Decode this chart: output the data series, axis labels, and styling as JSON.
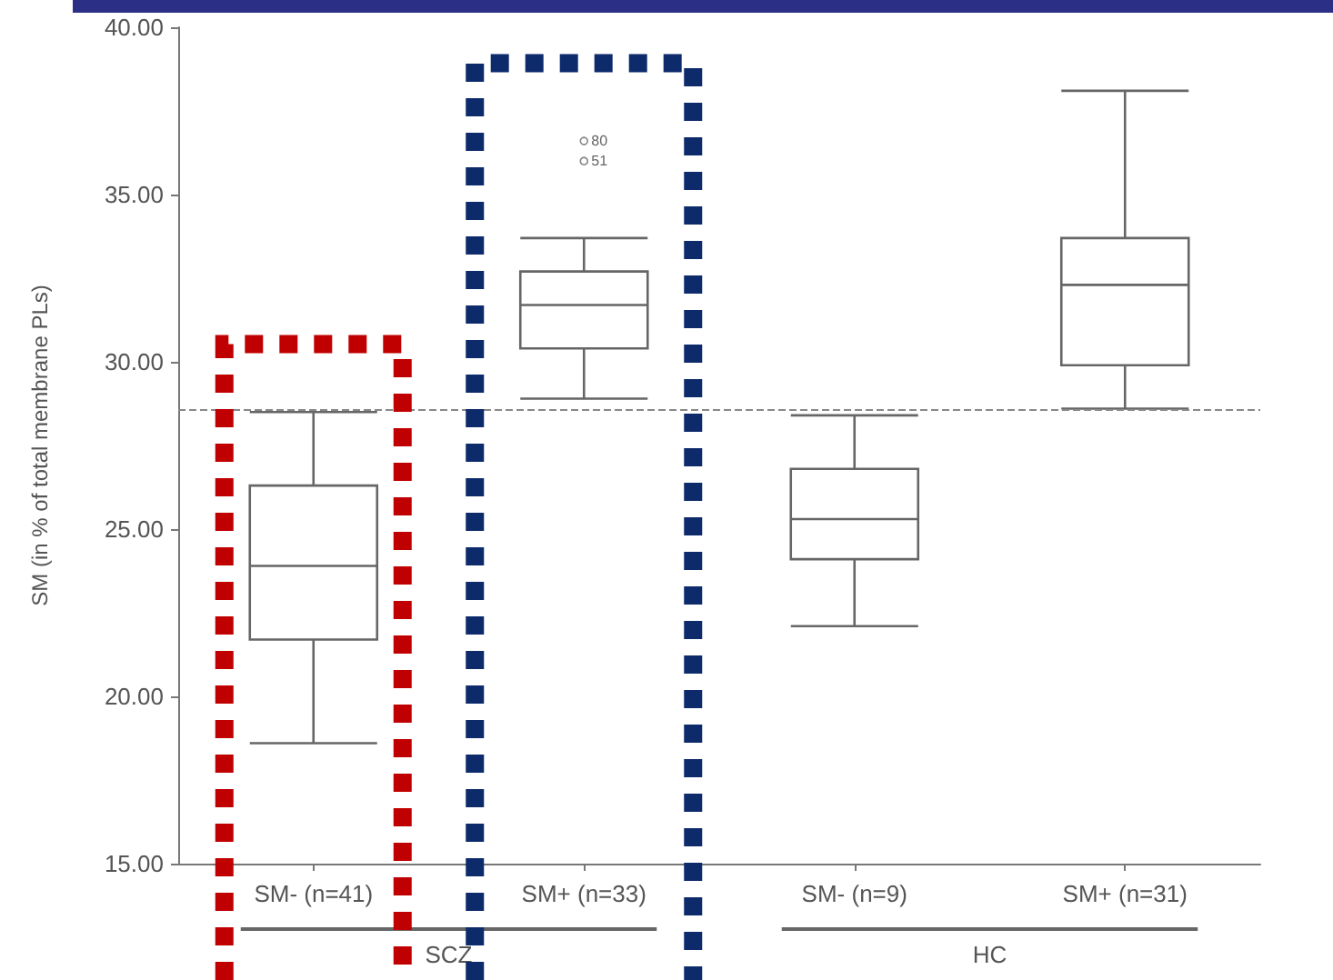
{
  "chart_data": {
    "type": "box",
    "ylabel": "SM (in % of total membrane PLs)",
    "categories": [
      "SM- (n=41)",
      "SM+ (n=33)",
      "SM- (n=9)",
      "SM+ (n=31)"
    ],
    "boxes": [
      {
        "low": 18.6,
        "q1": 21.7,
        "median": 23.9,
        "q3": 26.3,
        "high": 28.5
      },
      {
        "low": 28.9,
        "q1": 30.4,
        "median": 31.7,
        "q3": 32.7,
        "high": 33.7,
        "outliers": [
          36.6,
          36.0
        ]
      },
      {
        "low": 22.1,
        "q1": 24.1,
        "median": 25.3,
        "q3": 26.8,
        "high": 28.4
      },
      {
        "low": 28.6,
        "q1": 29.9,
        "median": 32.3,
        "q3": 33.7,
        "high": 38.1
      }
    ],
    "color": "#666666",
    "ylim": [
      15,
      40
    ],
    "yticks": [
      {
        "value": 15,
        "label": "15.00"
      },
      {
        "value": 20,
        "label": "20.00"
      },
      {
        "value": 25,
        "label": "25.00"
      },
      {
        "value": 30,
        "label": "30.00"
      },
      {
        "value": 35,
        "label": "35.00"
      },
      {
        "value": 40,
        "label": "40.00"
      }
    ],
    "ref_lines": [
      {
        "axis": "y",
        "value": 28.6,
        "color": "#888888",
        "line_style": "dashed"
      }
    ],
    "annotations": [
      "80",
      "51",
      "SCZ",
      "HC"
    ],
    "grid": false
  }
}
